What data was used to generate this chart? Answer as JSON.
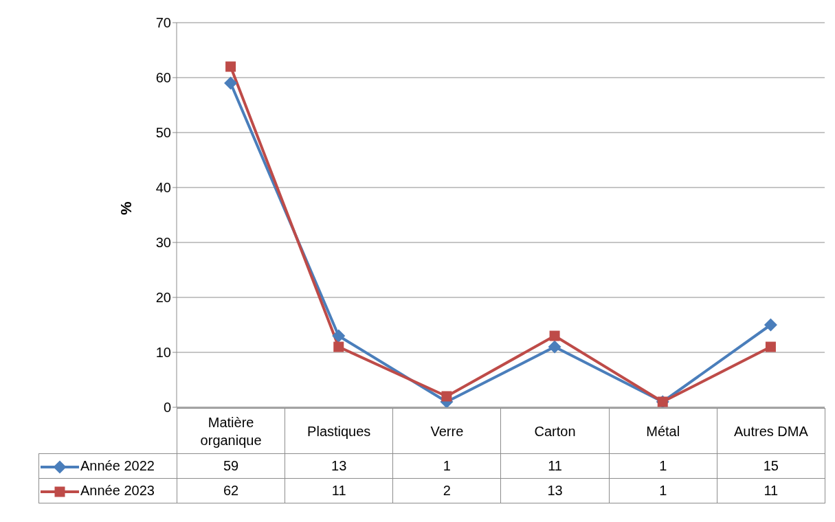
{
  "chart_data": {
    "type": "line",
    "ylabel": "%",
    "categories": [
      "Matière organique",
      "Plastiques",
      "Verre",
      "Carton",
      "Métal",
      "Autres DMA"
    ],
    "series": [
      {
        "name": "Année 2022",
        "color": "#4a7ebb",
        "marker": "diamond",
        "values": [
          59,
          13,
          1,
          11,
          1,
          15
        ]
      },
      {
        "name": "Année 2023",
        "color": "#be4b48",
        "marker": "square",
        "values": [
          62,
          11,
          2,
          13,
          1,
          11
        ]
      }
    ],
    "ylim": [
      0,
      70
    ],
    "yticks": [
      0,
      10,
      20,
      30,
      40,
      50,
      60,
      70
    ],
    "grid": "y",
    "legend": "bottom",
    "data_labels": true,
    "line_style": "solid"
  }
}
